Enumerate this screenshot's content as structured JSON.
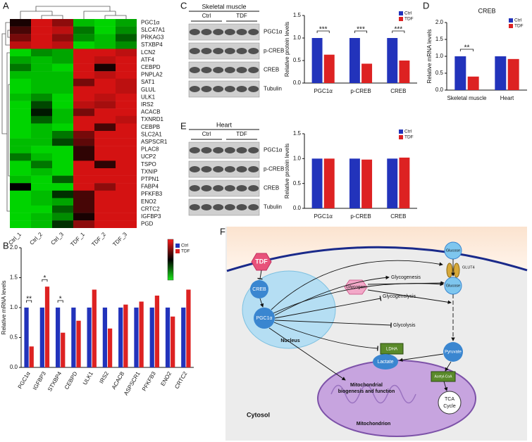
{
  "panel_labels": [
    "A",
    "B",
    "C",
    "D",
    "E",
    "F"
  ],
  "chart_data": [
    {
      "type": "heatmap",
      "columns": [
        "Ctrl_1",
        "Ctrl_2",
        "Ctrl_3",
        "TDF_1",
        "TDF_2",
        "TDF_3"
      ],
      "rows": [
        "PGC1α",
        "SLC47A1",
        "PRKAG3",
        "STXBP4",
        "LCN2",
        "ATF4",
        "CEBPD",
        "PNPLA2",
        "SAT1",
        "GLUL",
        "ULK1",
        "IRS2",
        "ACACB",
        "TXNRD1",
        "CEBPB",
        "SLC2A1",
        "ASPSCR1",
        "PLAC8",
        "UCP2",
        "TSPO",
        "TXNIP",
        "PTPN1",
        "FABP4",
        "PFKFB3",
        "ENO2",
        "CRTC2",
        "IGFBP3",
        "PGD"
      ],
      "values": [
        [
          0.1,
          0.9,
          0.6,
          -0.8,
          -0.9,
          -0.7
        ],
        [
          0.3,
          0.9,
          0.8,
          -0.5,
          -0.9,
          -0.6
        ],
        [
          0.5,
          0.9,
          0.6,
          -0.6,
          -0.8,
          -0.4
        ],
        [
          0.8,
          0.9,
          0.8,
          -0.9,
          -0.8,
          -0.6
        ],
        [
          -0.9,
          -0.6,
          -0.7,
          0.9,
          0.9,
          0.8
        ],
        [
          -0.7,
          -0.8,
          -0.7,
          0.9,
          0.8,
          0.9
        ],
        [
          -0.5,
          -0.8,
          -0.9,
          0.9,
          0.1,
          0.9
        ],
        [
          -0.8,
          -0.8,
          -0.8,
          0.9,
          0.8,
          0.9
        ],
        [
          -0.9,
          -0.8,
          -0.8,
          0.5,
          0.9,
          0.8
        ],
        [
          -0.9,
          -0.8,
          -0.8,
          0.9,
          0.9,
          0.8
        ],
        [
          -0.8,
          -0.6,
          -0.9,
          0.9,
          0.8,
          0.9
        ],
        [
          -0.9,
          -0.3,
          -0.9,
          0.8,
          0.7,
          0.9
        ],
        [
          -0.9,
          -0.1,
          -0.8,
          0.5,
          0.9,
          0.9
        ],
        [
          -0.9,
          -0.4,
          -0.8,
          0.9,
          0.9,
          0.8
        ],
        [
          -0.9,
          -0.8,
          -0.9,
          0.9,
          0.3,
          0.9
        ],
        [
          -0.9,
          -0.8,
          -0.5,
          0.5,
          0.9,
          0.9
        ],
        [
          -0.8,
          -0.8,
          -0.3,
          0.4,
          0.9,
          0.9
        ],
        [
          -0.8,
          -0.9,
          -0.9,
          0.2,
          0.9,
          0.9
        ],
        [
          -0.5,
          -0.8,
          -0.9,
          0.2,
          0.9,
          0.9
        ],
        [
          -0.9,
          -0.5,
          -0.9,
          0.9,
          0.2,
          0.9
        ],
        [
          -0.9,
          -0.8,
          -0.9,
          0.9,
          0.9,
          0.9
        ],
        [
          -0.8,
          -0.9,
          -0.4,
          0.9,
          0.9,
          0.9
        ],
        [
          0.0,
          -0.9,
          -0.9,
          0.9,
          0.6,
          0.9
        ],
        [
          -0.9,
          -0.8,
          -0.2,
          0.3,
          0.9,
          0.9
        ],
        [
          -0.9,
          -0.8,
          -0.7,
          0.3,
          0.9,
          0.9
        ],
        [
          -0.9,
          -0.9,
          -0.4,
          0.3,
          0.9,
          0.9
        ],
        [
          -0.9,
          -0.8,
          -0.6,
          0.1,
          0.9,
          0.9
        ],
        [
          -0.9,
          -0.8,
          -0.2,
          0.6,
          0.9,
          0.9
        ]
      ]
    },
    {
      "type": "bar",
      "y_label": "Relative mRNA levels",
      "categories": [
        "PGC1α",
        "IGFBP3",
        "STXBP4",
        "CEBPD",
        "ULK1",
        "IRS2",
        "ACACB",
        "ASPSCR1",
        "PFKFB3",
        "ENO2",
        "CRTC2"
      ],
      "series": [
        {
          "name": "Ctrl",
          "color": "#2233bb",
          "values": [
            1,
            1,
            1,
            1,
            1,
            1,
            1,
            1,
            1,
            1,
            1
          ]
        },
        {
          "name": "TDF",
          "color": "#dd2222",
          "values": [
            0.35,
            1.35,
            0.58,
            0.78,
            1.3,
            0.65,
            1.05,
            1.1,
            1.2,
            0.85,
            1.3
          ]
        }
      ],
      "significance": [
        "**",
        "*",
        "*",
        null,
        null,
        null,
        null,
        null,
        null,
        null,
        null
      ],
      "ylim": [
        0,
        2
      ],
      "legend": "upper right",
      "yticks": [
        {
          "value": 0,
          "label": "0.0"
        },
        {
          "value": 0.5,
          "label": "0.5"
        },
        {
          "value": 1,
          "label": "1.0"
        },
        {
          "value": 1.5,
          "label": "1.5"
        },
        {
          "value": 2,
          "label": "2.0"
        }
      ]
    },
    {
      "type": "bar",
      "y_label": "Relative protein levels",
      "categories": [
        "PGC1α",
        "p-CREB",
        "CREB"
      ],
      "series": [
        {
          "name": "Ctrl",
          "color": "#2233bb",
          "values": [
            1,
            1,
            1
          ]
        },
        {
          "name": "TDF",
          "color": "#dd2222",
          "values": [
            0.63,
            0.43,
            0.5
          ]
        }
      ],
      "significance": [
        "***",
        "***",
        "***"
      ],
      "ylim": [
        0,
        1.5
      ],
      "legend": "upper right",
      "yticks": [
        {
          "value": 0,
          "label": "0.0"
        },
        {
          "value": 0.5,
          "label": "0.5"
        },
        {
          "value": 1,
          "label": "1.0"
        },
        {
          "value": 1.5,
          "label": "1.5"
        }
      ]
    },
    {
      "type": "bar",
      "title": "CREB",
      "y_label": "Relative mRNA levels",
      "categories": [
        "Skeletal muscle",
        "Heart"
      ],
      "series": [
        {
          "name": "Ctrl",
          "color": "#2233bb",
          "values": [
            1,
            1
          ]
        },
        {
          "name": "TDF",
          "color": "#dd2222",
          "values": [
            0.4,
            0.92
          ]
        }
      ],
      "significance": [
        "**",
        null
      ],
      "ylim": [
        0,
        2
      ],
      "legend": "upper right",
      "yticks": [
        {
          "value": 0,
          "label": "0.0"
        },
        {
          "value": 0.5,
          "label": "0.5"
        },
        {
          "value": 1,
          "label": "1.0"
        },
        {
          "value": 1.5,
          "label": "1.5"
        },
        {
          "value": 2,
          "label": "2.0"
        }
      ]
    },
    {
      "type": "bar",
      "y_label": "Relative protein levels",
      "categories": [
        "PGC1α",
        "p-CREB",
        "CREB"
      ],
      "series": [
        {
          "name": "Ctrl",
          "color": "#2233bb",
          "values": [
            1,
            1,
            1
          ]
        },
        {
          "name": "TDF",
          "color": "#dd2222",
          "values": [
            1,
            0.98,
            1.02
          ]
        }
      ],
      "ylim": [
        0,
        1.5
      ],
      "legend": "upper right",
      "yticks": [
        {
          "value": 0,
          "label": "0.0"
        },
        {
          "value": 0.5,
          "label": "0.5"
        },
        {
          "value": 1,
          "label": "1.0"
        },
        {
          "value": 1.5,
          "label": "1.5"
        }
      ]
    }
  ],
  "blots": [
    {
      "tissue": "Skeletal muscle",
      "groups": [
        "Ctrl",
        "TDF"
      ],
      "proteins": [
        "PGC1α",
        "p-CREB",
        "CREB",
        "Tubulin"
      ]
    },
    {
      "tissue": "Heart",
      "groups": [
        "Ctrl",
        "TDF"
      ],
      "proteins": [
        "PGC1α",
        "p-CREB",
        "CREB",
        "Tubulin"
      ]
    }
  ],
  "diagram": {
    "tdf": "TDF",
    "creb": "CREB",
    "pgc1a": "PGC1α",
    "nucleus": "Nucleus",
    "glucose_out": "Glucose",
    "glut4": "GLUT4",
    "glucose_in": "Glucose",
    "glycogen": "Glycogen",
    "glycogenesis": "Glycogenesis",
    "glycogenolysis": "Glycogenolysis",
    "glycolysis": "Glycolysis",
    "ldha": "LDHA",
    "lactate": "Lactate",
    "pyruvate": "Pyruvate",
    "acetyl_coa": "Acetyl-CoA",
    "tca_cycle": [
      "TCA",
      "Cycle"
    ],
    "mito_biogenesis": [
      "Mitochondrial",
      "biogenesis and function"
    ],
    "mitochondrion": "Mitochondrion",
    "cytosol": "Cytosol"
  }
}
